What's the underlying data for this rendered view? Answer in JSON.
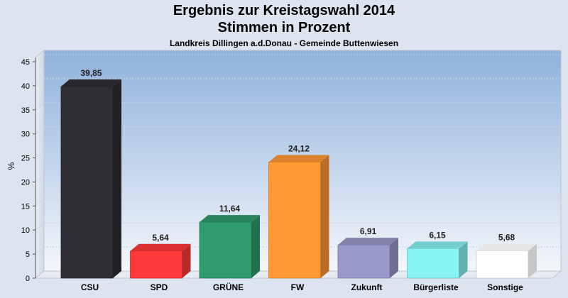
{
  "chart_data": {
    "type": "bar",
    "title": "Ergebnis zur Kreistagswahl 2014",
    "subtitle": "Stimmen in Prozent",
    "caption": "Landkreis Dillingen a.d.Donau - Gemeinde Buttenwiesen",
    "ylabel": "%",
    "xlabel": "",
    "ylim": [
      0,
      45
    ],
    "yticks": [
      0,
      5,
      10,
      15,
      20,
      25,
      30,
      35,
      40,
      45
    ],
    "grid": true,
    "categories": [
      "CSU",
      "SPD",
      "GRÜNE",
      "FW",
      "Zukunft",
      "Bürgerliste",
      "Sonstige"
    ],
    "values": [
      39.85,
      5.64,
      11.64,
      24.12,
      6.91,
      6.15,
      5.68
    ],
    "value_labels": [
      "39,85",
      "5,64",
      "11,64",
      "24,12",
      "6,91",
      "6,15",
      "5,68"
    ],
    "colors": [
      "#2e2e34",
      "#ff3a3a",
      "#2f9d6b",
      "#ff9933",
      "#9999cc",
      "#88f4f4",
      "#ffffff"
    ]
  }
}
